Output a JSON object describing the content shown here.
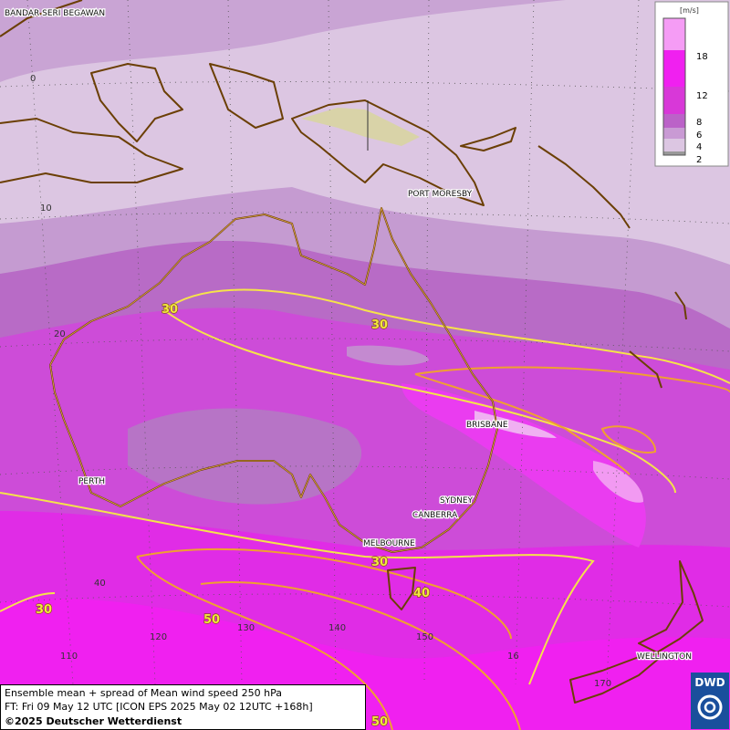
{
  "places": [
    "BANDAR SERI BEGAWAN",
    "PORT MORESBY",
    "BRISBANE",
    "PERTH",
    "SYDNEY",
    "CANBERRA",
    "MELBOURNE",
    "WELLINGTON"
  ],
  "latitude_labels": [
    "0",
    "10",
    "20",
    "40"
  ],
  "longitude_labels": [
    "110",
    "120",
    "130",
    "140",
    "150",
    "16",
    "170"
  ],
  "contour_labels": [
    "30",
    "30",
    "30",
    "40",
    "50",
    "30",
    "50"
  ],
  "legend": {
    "unit": "[m/s]",
    "ticks": [
      "18",
      "12",
      "8",
      "6",
      "4",
      "2"
    ]
  },
  "footer": {
    "line1": "Ensemble mean + spread of Mean wind speed 250 hPa",
    "line2": "FT: Fri 09 May 12 UTC [ICON EPS 2025 May 02 12UTC +168h]",
    "line3": "©2025 Deutscher Wetterdienst"
  },
  "logo": "DWD"
}
